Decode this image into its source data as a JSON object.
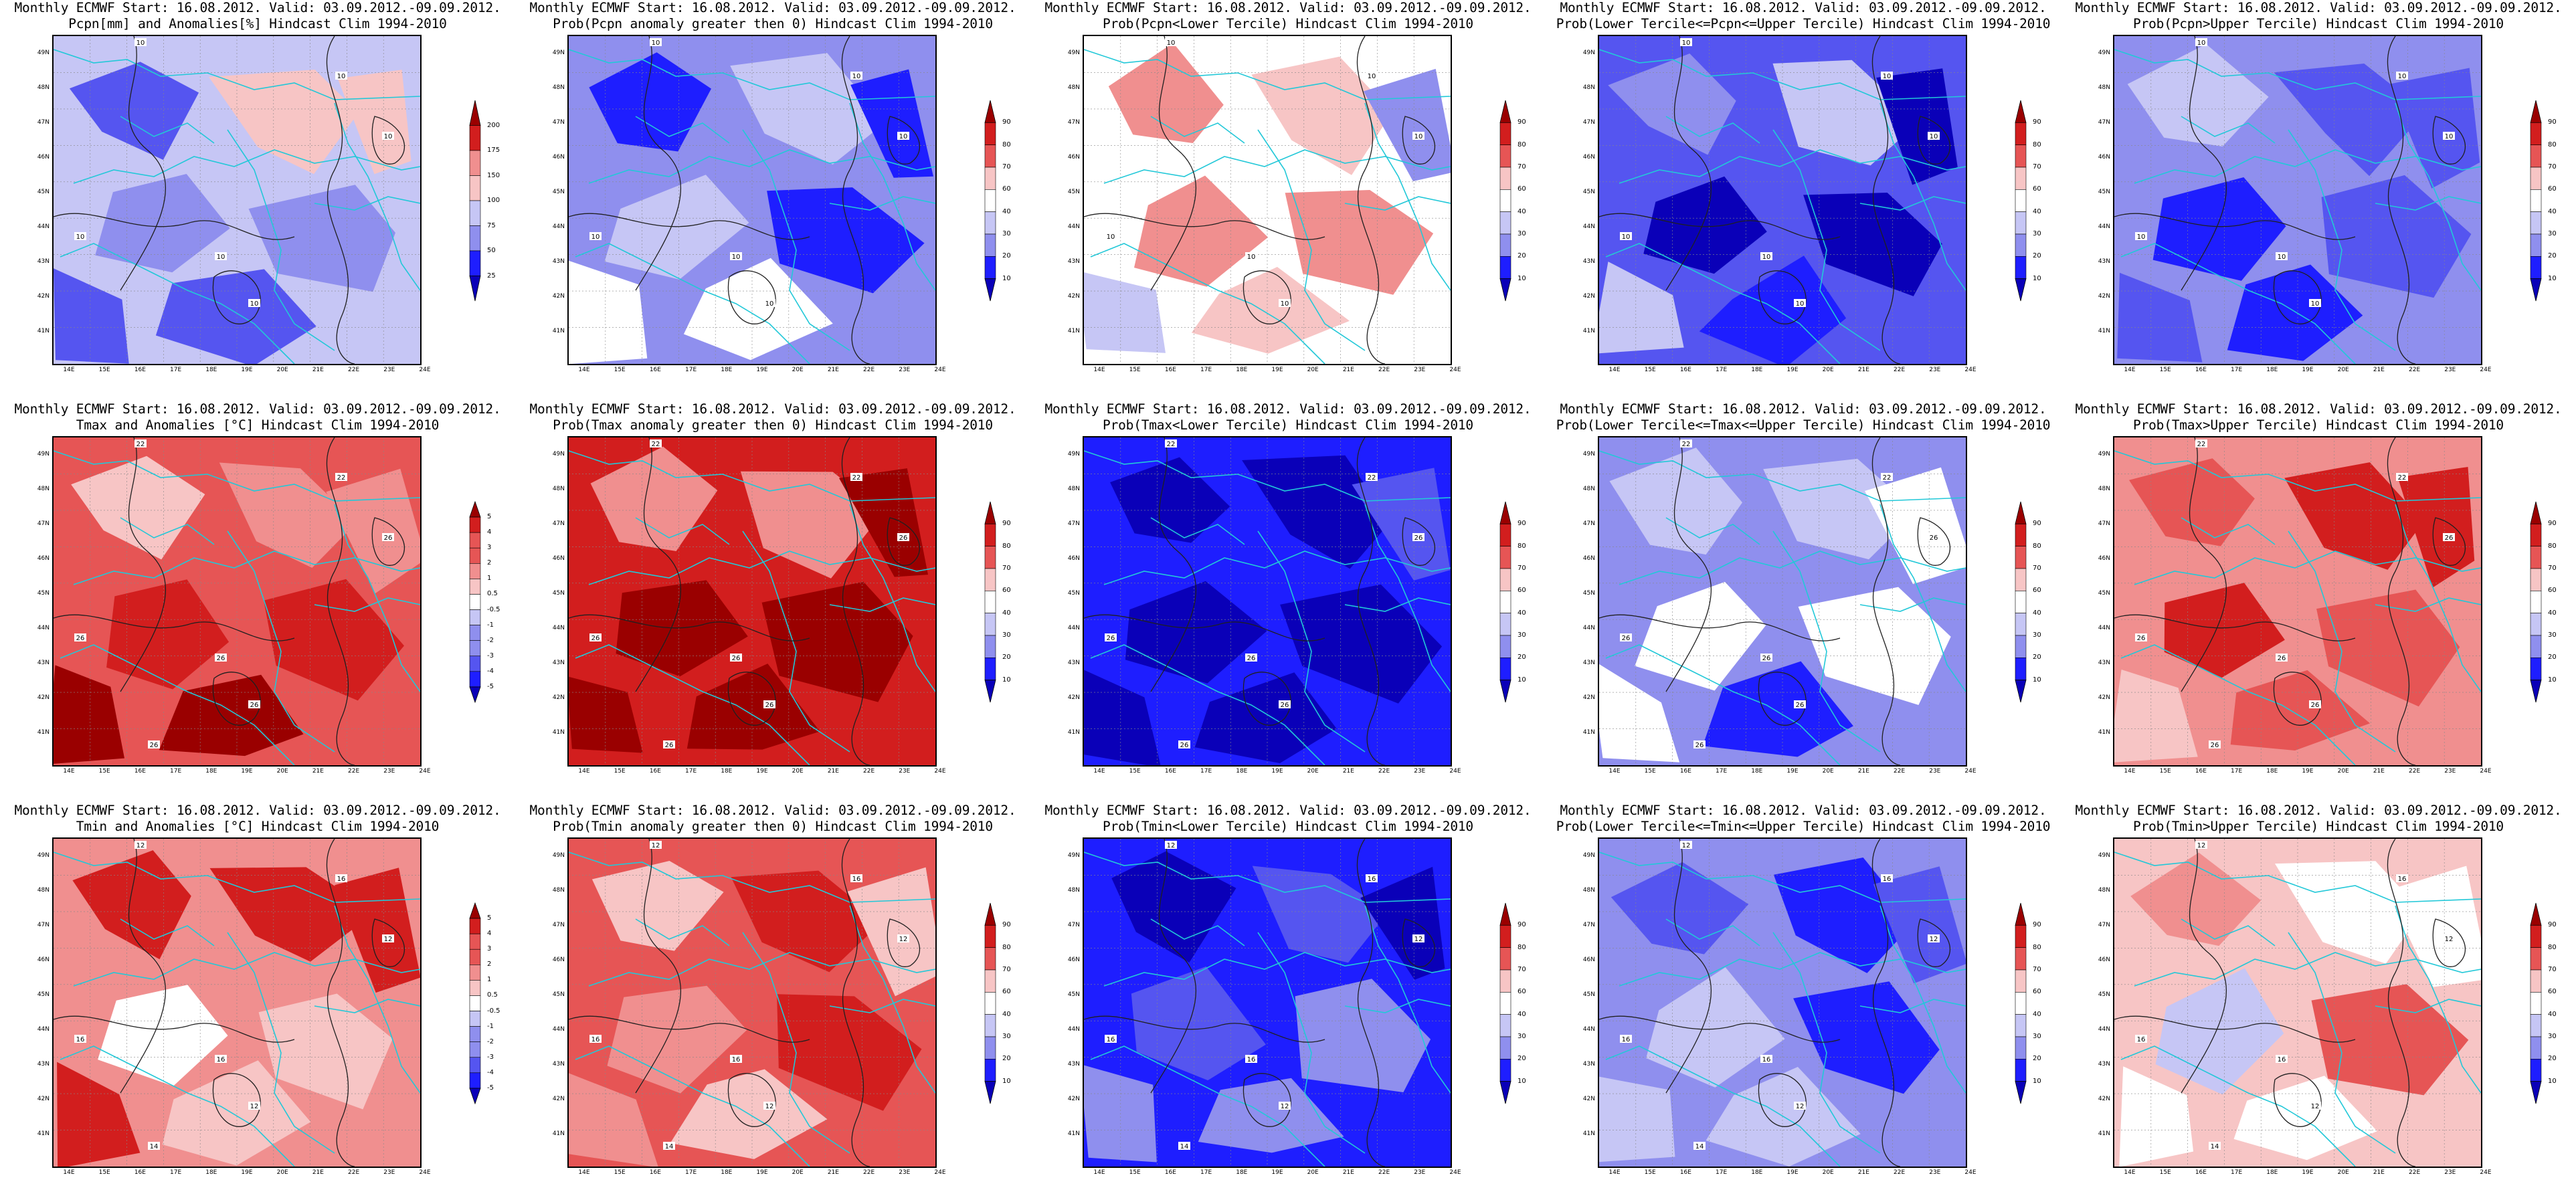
{
  "colors": {
    "pal": [
      "#0a00b8",
      "#1e1eff",
      "#5555f0",
      "#8f8fee",
      "#c6c6f5",
      "#ffffff",
      "#f7c5c5",
      "#f08f8f",
      "#e65555",
      "#d21e1e",
      "#9a0000"
    ],
    "coast": "#22c8d8",
    "contour": "#202020"
  },
  "panels": [
    {
      "title1": "Monthly ECMWF Start: 16.08.2012. Valid: 03.09.2012.-09.09.2012.",
      "title2": "Pcpn[mm] and Anomalies[%] Hindcast Clim 1994-2010",
      "cbar": [
        "25",
        "50",
        "75",
        "100",
        "150",
        "175",
        "200"
      ],
      "contour_labels": [
        "10",
        "10",
        "10",
        "10",
        "10",
        "10"
      ],
      "fill_level": 4
    },
    {
      "title1": "Monthly ECMWF Start: 16.08.2012. Valid: 03.09.2012.-09.09.2012.",
      "title2": "Prob(Pcpn anomaly greater then 0) Hindcast Clim 1994-2010",
      "cbar": [
        "10",
        "20",
        "30",
        "40",
        "60",
        "70",
        "80",
        "90"
      ],
      "contour_labels": [
        "10",
        "10",
        "10",
        "10",
        "10",
        "10"
      ],
      "fill_level": 3
    },
    {
      "title1": "Monthly ECMWF Start: 16.08.2012. Valid: 03.09.2012.-09.09.2012.",
      "title2": "Prob(Pcpn<Lower Tercile) Hindcast Clim 1994-2010",
      "cbar": [
        "10",
        "20",
        "30",
        "40",
        "60",
        "70",
        "80",
        "90"
      ],
      "contour_labels": [
        "10",
        "10",
        "10",
        "10",
        "10",
        "10"
      ],
      "fill_level": 5
    },
    {
      "title1": "Monthly ECMWF Start: 16.08.2012. Valid: 03.09.2012.-09.09.2012.",
      "title2": "Prob(Lower Tercile<=Pcpn<=Upper Tercile) Hindcast Clim 1994-2010",
      "cbar": [
        "10",
        "20",
        "30",
        "40",
        "60",
        "70",
        "80",
        "90"
      ],
      "contour_labels": [
        "10",
        "10",
        "10",
        "10",
        "10",
        "10"
      ],
      "fill_level": 2
    },
    {
      "title1": "Monthly ECMWF Start: 16.08.2012. Valid: 03.09.2012.-09.09.2012.",
      "title2": "Prob(Pcpn>Upper Tercile) Hindcast Clim 1994-2010",
      "cbar": [
        "10",
        "20",
        "30",
        "40",
        "60",
        "70",
        "80",
        "90"
      ],
      "contour_labels": [
        "10",
        "10",
        "10",
        "10",
        "10",
        "10"
      ],
      "fill_level": 3
    },
    {
      "title1": "Monthly ECMWF Start: 16.08.2012. Valid: 03.09.2012.-09.09.2012.",
      "title2": "Tmax and Anomalies [°C] Hindcast Clim 1994-2010",
      "cbar": [
        "-5",
        "-4",
        "-3",
        "-2",
        "-1",
        "-0.5",
        "0.5",
        "1",
        "2",
        "3",
        "4",
        "5"
      ],
      "contour_labels": [
        "22",
        "22",
        "26",
        "26",
        "26",
        "26",
        "26"
      ],
      "fill_level": 8
    },
    {
      "title1": "Monthly ECMWF Start: 16.08.2012. Valid: 03.09.2012.-09.09.2012.",
      "title2": "Prob(Tmax anomaly greater then 0) Hindcast Clim 1994-2010",
      "cbar": [
        "10",
        "20",
        "30",
        "40",
        "60",
        "70",
        "80",
        "90"
      ],
      "contour_labels": [
        "22",
        "22",
        "26",
        "26",
        "26",
        "26",
        "26"
      ],
      "fill_level": 9
    },
    {
      "title1": "Monthly ECMWF Start: 16.08.2012. Valid: 03.09.2012.-09.09.2012.",
      "title2": "Prob(Tmax<Lower Tercile) Hindcast Clim 1994-2010",
      "cbar": [
        "10",
        "20",
        "30",
        "40",
        "60",
        "70",
        "80",
        "90"
      ],
      "contour_labels": [
        "22",
        "22",
        "26",
        "26",
        "26",
        "26",
        "26"
      ],
      "fill_level": 1
    },
    {
      "title1": "Monthly ECMWF Start: 16.08.2012. Valid: 03.09.2012.-09.09.2012.",
      "title2": "Prob(Lower Tercile<=Tmax<=Upper Tercile) Hindcast Clim 1994-2010",
      "cbar": [
        "10",
        "20",
        "30",
        "40",
        "60",
        "70",
        "80",
        "90"
      ],
      "contour_labels": [
        "22",
        "22",
        "26",
        "26",
        "26",
        "26",
        "26"
      ],
      "fill_level": 3
    },
    {
      "title1": "Monthly ECMWF Start: 16.08.2012. Valid: 03.09.2012.-09.09.2012.",
      "title2": "Prob(Tmax>Upper Tercile) Hindcast Clim 1994-2010",
      "cbar": [
        "10",
        "20",
        "30",
        "40",
        "60",
        "70",
        "80",
        "90"
      ],
      "contour_labels": [
        "22",
        "22",
        "26",
        "26",
        "26",
        "26",
        "26"
      ],
      "fill_level": 7
    },
    {
      "title1": "Monthly ECMWF Start: 16.08.2012. Valid: 03.09.2012.-09.09.2012.",
      "title2": "Tmin and Anomalies [°C] Hindcast Clim 1994-2010",
      "cbar": [
        "-5",
        "-4",
        "-3",
        "-2",
        "-1",
        "-0.5",
        "0.5",
        "1",
        "2",
        "3",
        "4",
        "5"
      ],
      "contour_labels": [
        "12",
        "16",
        "16",
        "12",
        "12",
        "16",
        "14"
      ],
      "fill_level": 7
    },
    {
      "title1": "Monthly ECMWF Start: 16.08.2012. Valid: 03.09.2012.-09.09.2012.",
      "title2": "Prob(Tmin anomaly greater then 0) Hindcast Clim 1994-2010",
      "cbar": [
        "10",
        "20",
        "30",
        "40",
        "60",
        "70",
        "80",
        "90"
      ],
      "contour_labels": [
        "12",
        "16",
        "16",
        "12",
        "12",
        "16",
        "14"
      ],
      "fill_level": 8
    },
    {
      "title1": "Monthly ECMWF Start: 16.08.2012. Valid: 03.09.2012.-09.09.2012.",
      "title2": "Prob(Tmin<Lower Tercile) Hindcast Clim 1994-2010",
      "cbar": [
        "10",
        "20",
        "30",
        "40",
        "60",
        "70",
        "80",
        "90"
      ],
      "contour_labels": [
        "12",
        "16",
        "16",
        "12",
        "12",
        "16",
        "14"
      ],
      "fill_level": 1
    },
    {
      "title1": "Monthly ECMWF Start: 16.08.2012. Valid: 03.09.2012.-09.09.2012.",
      "title2": "Prob(Lower Tercile<=Tmin<=Upper Tercile) Hindcast Clim 1994-2010",
      "cbar": [
        "10",
        "20",
        "30",
        "40",
        "60",
        "70",
        "80",
        "90"
      ],
      "contour_labels": [
        "12",
        "16",
        "16",
        "12",
        "12",
        "16",
        "14"
      ],
      "fill_level": 3
    },
    {
      "title1": "Monthly ECMWF Start: 16.08.2012. Valid: 03.09.2012.-09.09.2012.",
      "title2": "Prob(Tmin>Upper Tercile) Hindcast Clim 1994-2010",
      "cbar": [
        "10",
        "20",
        "30",
        "40",
        "60",
        "70",
        "80",
        "90"
      ],
      "contour_labels": [
        "12",
        "16",
        "16",
        "12",
        "12",
        "16",
        "14"
      ],
      "fill_level": 6
    }
  ],
  "lat_labels": [
    "49N",
    "48N",
    "47N",
    "46N",
    "45N",
    "44N",
    "43N",
    "42N",
    "41N"
  ],
  "lon_labels": [
    "14E",
    "15E",
    "16E",
    "17E",
    "18E",
    "19E",
    "20E",
    "21E",
    "22E",
    "23E",
    "24E"
  ]
}
